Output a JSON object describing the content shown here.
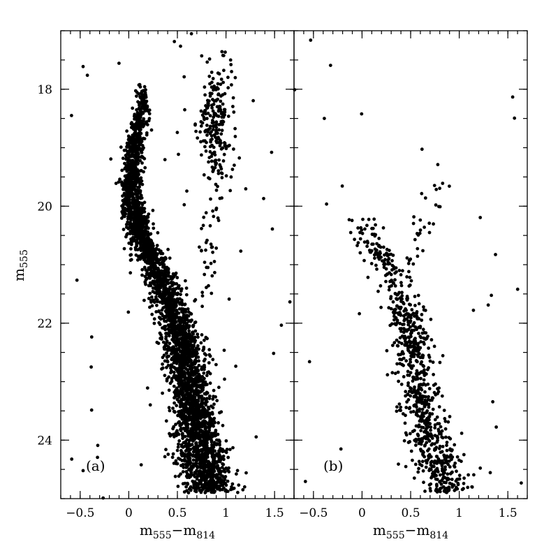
{
  "chart_data": [
    {
      "type": "scatter",
      "panel_label": "(a)",
      "xlabel": {
        "main": "m",
        "sub1": "555",
        "minus": "−m",
        "sub2": "814"
      },
      "ylabel": {
        "main": "m",
        "sub": "555"
      },
      "xlim": [
        -0.7,
        1.7
      ],
      "ylim": [
        25,
        17
      ],
      "xticks": [
        -0.5,
        0,
        0.5,
        1,
        1.5
      ],
      "xtick_labels": [
        "−0.5",
        "0",
        "0.5",
        "1",
        "1.5"
      ],
      "yticks": [
        18,
        20,
        22,
        24
      ],
      "ytick_labels": [
        "18",
        "20",
        "22",
        "24"
      ],
      "sequences": [
        {
          "name": "main-sequence",
          "knots": [
            [
              24.9,
              0.85
            ],
            [
              24.0,
              0.72
            ],
            [
              23.0,
              0.62
            ],
            [
              22.0,
              0.5
            ],
            [
              21.2,
              0.33
            ],
            [
              20.6,
              0.14
            ],
            [
              20.0,
              0.04
            ],
            [
              19.5,
              0.03
            ],
            [
              19.0,
              0.05
            ],
            [
              18.5,
              0.12
            ],
            [
              18.2,
              0.15
            ],
            [
              17.9,
              0.1
            ]
          ],
          "n": 3600,
          "spread_top": 0.03,
          "spread_bottom": 0.13
        },
        {
          "name": "red-clump",
          "center": [
            0.88,
            18.6
          ],
          "sx": 0.09,
          "sy": 0.4,
          "n": 170
        },
        {
          "name": "red-giant-branch",
          "knots": [
            [
              21.6,
              0.8
            ],
            [
              20.2,
              0.85
            ],
            [
              19.3,
              0.9
            ],
            [
              18.0,
              0.95
            ],
            [
              17.2,
              1.0
            ]
          ],
          "n": 90,
          "spread_top": 0.07,
          "spread_bottom": 0.05
        },
        {
          "name": "field",
          "x_range": [
            -0.7,
            1.7
          ],
          "y_range": [
            17,
            25
          ],
          "n": 60
        }
      ]
    },
    {
      "type": "scatter",
      "panel_label": "(b)",
      "xlabel": {
        "main": "m",
        "sub1": "555",
        "minus": "−m",
        "sub2": "814"
      },
      "xlim": [
        -0.7,
        1.7
      ],
      "ylim": [
        25,
        17
      ],
      "xticks": [
        -0.5,
        0,
        0.5,
        1,
        1.5
      ],
      "xtick_labels": [
        "−0.5",
        "0",
        "0.5",
        "1",
        "1.5"
      ],
      "yticks": [
        18,
        20,
        22,
        24
      ],
      "sequences": [
        {
          "name": "main-sequence",
          "knots": [
            [
              24.9,
              0.9
            ],
            [
              24.0,
              0.7
            ],
            [
              23.0,
              0.57
            ],
            [
              22.0,
              0.46
            ],
            [
              21.5,
              0.4
            ],
            [
              21.0,
              0.25
            ],
            [
              20.6,
              0.1
            ],
            [
              20.2,
              0.02
            ]
          ],
          "n": 850,
          "spread_top": 0.08,
          "spread_bottom": 0.12
        },
        {
          "name": "blue-loop",
          "knots": [
            [
              21.0,
              0.45
            ],
            [
              20.5,
              0.6
            ],
            [
              20.0,
              0.72
            ],
            [
              19.5,
              0.8
            ],
            [
              19.0,
              0.85
            ]
          ],
          "n": 30,
          "spread_top": 0.06,
          "spread_bottom": 0.07
        },
        {
          "name": "field",
          "x_range": [
            -0.7,
            1.7
          ],
          "y_range": [
            17,
            25
          ],
          "n": 35
        }
      ]
    }
  ]
}
